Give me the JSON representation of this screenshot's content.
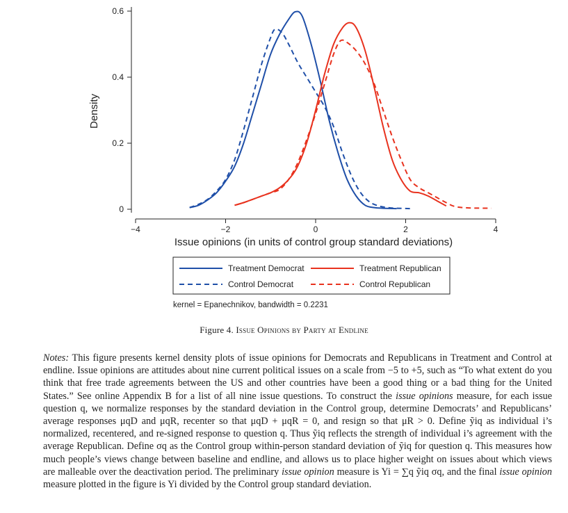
{
  "chart_data": {
    "type": "line",
    "title": "",
    "xlabel": "Issue opinions (in units of control group standard deviations)",
    "ylabel": "Density",
    "xlim": [
      -4,
      4
    ],
    "ylim": [
      0,
      0.6
    ],
    "x_ticks": [
      "−4",
      "−2",
      "0",
      "2",
      "4"
    ],
    "y_ticks": [
      "0",
      "0.2",
      "0.4",
      "0.6"
    ],
    "kernel_note": "kernel = Epanechnikov, bandwidth = 0.2231",
    "series": [
      {
        "name": "Treatment Democrat",
        "color": "#1f4fa8",
        "dash": "solid",
        "x": [
          -2.8,
          -2.6,
          -2.4,
          -2.2,
          -2.0,
          -1.8,
          -1.6,
          -1.4,
          -1.2,
          -1.0,
          -0.8,
          -0.6,
          -0.45,
          -0.3,
          -0.1,
          0.1,
          0.3,
          0.5,
          0.7,
          0.9,
          1.1,
          1.3,
          1.5,
          1.8
        ],
        "y": [
          0.005,
          0.012,
          0.028,
          0.05,
          0.085,
          0.13,
          0.2,
          0.29,
          0.38,
          0.47,
          0.53,
          0.575,
          0.598,
          0.585,
          0.5,
          0.39,
          0.27,
          0.17,
          0.09,
          0.04,
          0.012,
          0.005,
          0.003,
          0.002
        ]
      },
      {
        "name": "Control Democrat",
        "color": "#1f4fa8",
        "dash": "dashed",
        "x": [
          -2.8,
          -2.6,
          -2.4,
          -2.2,
          -2.0,
          -1.8,
          -1.6,
          -1.4,
          -1.2,
          -1.0,
          -0.9,
          -0.75,
          -0.6,
          -0.4,
          -0.2,
          0.0,
          0.2,
          0.4,
          0.6,
          0.8,
          1.0,
          1.2,
          1.4,
          1.6,
          1.8,
          2.1
        ],
        "y": [
          0.005,
          0.015,
          0.03,
          0.055,
          0.09,
          0.15,
          0.24,
          0.34,
          0.44,
          0.52,
          0.545,
          0.535,
          0.5,
          0.445,
          0.4,
          0.355,
          0.31,
          0.25,
          0.17,
          0.1,
          0.05,
          0.022,
          0.01,
          0.005,
          0.003,
          0.002
        ]
      },
      {
        "name": "Treatment Republican",
        "color": "#e8321e",
        "dash": "solid",
        "x": [
          -1.8,
          -1.6,
          -1.4,
          -1.2,
          -1.0,
          -0.8,
          -0.6,
          -0.4,
          -0.2,
          0.0,
          0.2,
          0.4,
          0.6,
          0.75,
          0.9,
          1.1,
          1.3,
          1.5,
          1.7,
          1.9,
          2.1,
          2.3,
          2.5,
          2.7,
          2.9
        ],
        "y": [
          0.012,
          0.02,
          0.03,
          0.04,
          0.05,
          0.065,
          0.09,
          0.13,
          0.2,
          0.3,
          0.41,
          0.5,
          0.55,
          0.565,
          0.55,
          0.48,
          0.37,
          0.25,
          0.15,
          0.09,
          0.055,
          0.05,
          0.04,
          0.025,
          0.01
        ]
      },
      {
        "name": "Control Republican",
        "color": "#e8321e",
        "dash": "dashed",
        "x": [
          -1.8,
          -1.6,
          -1.4,
          -1.2,
          -1.0,
          -0.8,
          -0.6,
          -0.4,
          -0.2,
          0.0,
          0.2,
          0.4,
          0.55,
          0.7,
          0.9,
          1.1,
          1.3,
          1.5,
          1.7,
          1.9,
          2.1,
          2.3,
          2.5,
          2.7,
          2.9,
          3.1,
          3.4,
          3.9
        ],
        "y": [
          0.012,
          0.02,
          0.03,
          0.04,
          0.05,
          0.06,
          0.09,
          0.14,
          0.21,
          0.29,
          0.38,
          0.47,
          0.51,
          0.505,
          0.48,
          0.44,
          0.38,
          0.3,
          0.22,
          0.15,
          0.09,
          0.065,
          0.05,
          0.035,
          0.02,
          0.008,
          0.004,
          0.003
        ]
      }
    ],
    "legend": {
      "placement": "bottom",
      "entries": [
        "Treatment Democrat",
        "Treatment Republican",
        "Control Democrat",
        "Control Republican"
      ]
    }
  },
  "caption": {
    "label": "Figure 4.",
    "title": "Issue Opinions by Party at Endline"
  },
  "notes": {
    "label": "Notes:",
    "p1": "This figure presents kernel density plots of issue opinions for Democrats and Republicans in Treatment and Control at endline. Issue opinions are attitudes about nine current political issues on a scale from −5 to +5, such as “To what extent do you think that free trade agreements between the US and other countries have been a good thing or a bad thing for the United States.” See online Appendix B for a list of all nine issue questions. To construct the",
    "io1": "issue opinions",
    "p2": "measure, for each issue question q, we normalize responses by the standard deviation in the Control group, determine Democrats’ and Republicans’ average responses μqD and μqR, recenter so that μqD + μqR = 0, and resign so that μR > 0. Define ỹiq as individual i’s normalized, recentered, and re-signed response to question q. Thus ỹiq reflects the strength of individual i’s agreement with the average Republican. Define σq as the Control group within-person standard deviation of ỹiq for question q. This measures how much people’s views change between baseline and endline, and allows us to place higher weight on issues about which views are malleable over the deactivation period. The preliminary",
    "io2": "issue opinion",
    "p3": "measure is Yi = ∑q ỹiq σq, and the final",
    "io3": "issue opinion",
    "p4": "measure plotted in the figure is Yi divided by the Control group standard deviation."
  }
}
